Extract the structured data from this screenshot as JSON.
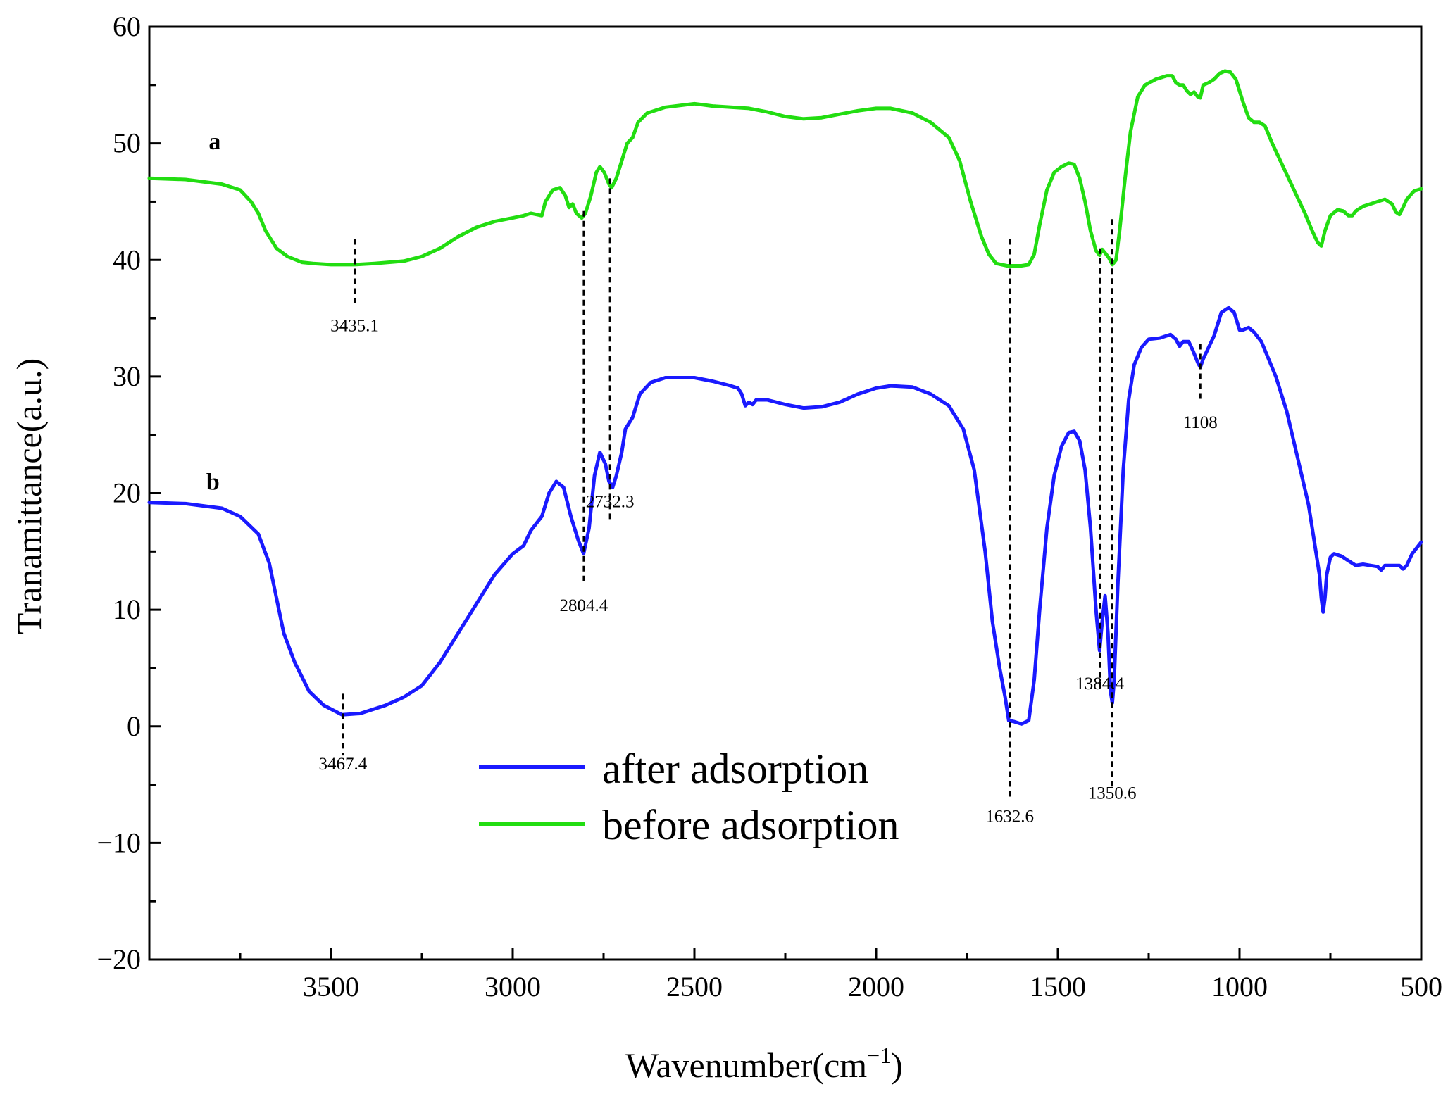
{
  "chart_data": {
    "type": "line",
    "title": "",
    "xlabel": "Wavenumber(cm",
    "xlabel_sup": "−1",
    "xlabel_close": ")",
    "ylabel": "Tranamittance(a.u.)",
    "xlim": [
      4000,
      500
    ],
    "ylim": [
      -20,
      60
    ],
    "x_ticks": [
      3500,
      3000,
      2500,
      2000,
      1500,
      1000,
      500
    ],
    "x_tick_labels": [
      "3500",
      "3000",
      "2500",
      "2000",
      "1500",
      "1000",
      "500"
    ],
    "y_ticks": [
      -20,
      -10,
      0,
      10,
      20,
      30,
      40,
      50,
      60
    ],
    "y_tick_labels": [
      "−20",
      "−10",
      "0",
      "10",
      "20",
      "30",
      "40",
      "50",
      "60"
    ],
    "grid": false,
    "legend": {
      "position": "bottom-center",
      "entries": [
        "after adsorption",
        "before adsorption"
      ]
    },
    "series": [
      {
        "name": "after adsorption",
        "label": "b",
        "color": "#1a1aff",
        "points": [
          [
            4000,
            19.2
          ],
          [
            3900,
            19.1
          ],
          [
            3800,
            18.7
          ],
          [
            3750,
            18.0
          ],
          [
            3700,
            16.5
          ],
          [
            3670,
            14
          ],
          [
            3650,
            11
          ],
          [
            3630,
            8
          ],
          [
            3600,
            5.5
          ],
          [
            3560,
            3
          ],
          [
            3520,
            1.8
          ],
          [
            3470,
            1.0
          ],
          [
            3420,
            1.1
          ],
          [
            3350,
            1.8
          ],
          [
            3300,
            2.5
          ],
          [
            3250,
            3.5
          ],
          [
            3200,
            5.5
          ],
          [
            3150,
            8
          ],
          [
            3100,
            10.5
          ],
          [
            3050,
            13
          ],
          [
            3000,
            14.8
          ],
          [
            2970,
            15.5
          ],
          [
            2950,
            16.8
          ],
          [
            2920,
            18
          ],
          [
            2900,
            20
          ],
          [
            2880,
            21
          ],
          [
            2860,
            20.5
          ],
          [
            2840,
            18
          ],
          [
            2820,
            16
          ],
          [
            2805,
            14.8
          ],
          [
            2790,
            17
          ],
          [
            2775,
            21.5
          ],
          [
            2760,
            23.5
          ],
          [
            2745,
            22.5
          ],
          [
            2735,
            21
          ],
          [
            2725,
            20.5
          ],
          [
            2715,
            21.5
          ],
          [
            2700,
            23.5
          ],
          [
            2690,
            25.5
          ],
          [
            2670,
            26.5
          ],
          [
            2650,
            28.5
          ],
          [
            2620,
            29.5
          ],
          [
            2580,
            29.9
          ],
          [
            2500,
            29.9
          ],
          [
            2450,
            29.6
          ],
          [
            2400,
            29.2
          ],
          [
            2380,
            29.0
          ],
          [
            2370,
            28.5
          ],
          [
            2360,
            27.5
          ],
          [
            2350,
            27.8
          ],
          [
            2340,
            27.6
          ],
          [
            2330,
            28
          ],
          [
            2300,
            28.0
          ],
          [
            2250,
            27.6
          ],
          [
            2200,
            27.3
          ],
          [
            2150,
            27.4
          ],
          [
            2100,
            27.8
          ],
          [
            2050,
            28.5
          ],
          [
            2000,
            29.0
          ],
          [
            1960,
            29.2
          ],
          [
            1900,
            29.1
          ],
          [
            1850,
            28.5
          ],
          [
            1800,
            27.5
          ],
          [
            1760,
            25.5
          ],
          [
            1730,
            22
          ],
          [
            1700,
            15
          ],
          [
            1680,
            9
          ],
          [
            1660,
            5
          ],
          [
            1645,
            2.5
          ],
          [
            1635,
            0.5
          ],
          [
            1620,
            0.4
          ],
          [
            1600,
            0.2
          ],
          [
            1580,
            0.5
          ],
          [
            1565,
            4
          ],
          [
            1550,
            10
          ],
          [
            1530,
            17
          ],
          [
            1510,
            21.5
          ],
          [
            1490,
            24
          ],
          [
            1470,
            25.2
          ],
          [
            1455,
            25.3
          ],
          [
            1440,
            24.5
          ],
          [
            1425,
            22
          ],
          [
            1410,
            17
          ],
          [
            1395,
            10
          ],
          [
            1385,
            6.5
          ],
          [
            1378,
            9
          ],
          [
            1370,
            11.2
          ],
          [
            1362,
            8
          ],
          [
            1355,
            3
          ],
          [
            1350,
            2
          ],
          [
            1345,
            4
          ],
          [
            1335,
            12
          ],
          [
            1320,
            22
          ],
          [
            1305,
            28
          ],
          [
            1290,
            31
          ],
          [
            1270,
            32.5
          ],
          [
            1250,
            33.2
          ],
          [
            1220,
            33.3
          ],
          [
            1190,
            33.6
          ],
          [
            1175,
            33.2
          ],
          [
            1165,
            32.6
          ],
          [
            1155,
            33
          ],
          [
            1140,
            33
          ],
          [
            1128,
            32.2
          ],
          [
            1115,
            31.2
          ],
          [
            1108,
            30.8
          ],
          [
            1100,
            31.5
          ],
          [
            1085,
            32.5
          ],
          [
            1070,
            33.5
          ],
          [
            1050,
            35.5
          ],
          [
            1030,
            35.9
          ],
          [
            1015,
            35.5
          ],
          [
            1000,
            34
          ],
          [
            990,
            34
          ],
          [
            975,
            34.2
          ],
          [
            960,
            33.8
          ],
          [
            940,
            33
          ],
          [
            900,
            30
          ],
          [
            870,
            27
          ],
          [
            840,
            23
          ],
          [
            810,
            19
          ],
          [
            790,
            15
          ],
          [
            780,
            13
          ],
          [
            775,
            11
          ],
          [
            770,
            9.8
          ],
          [
            765,
            11
          ],
          [
            760,
            13
          ],
          [
            750,
            14.5
          ],
          [
            740,
            14.8
          ],
          [
            720,
            14.6
          ],
          [
            700,
            14.2
          ],
          [
            680,
            13.8
          ],
          [
            660,
            13.9
          ],
          [
            640,
            13.8
          ],
          [
            620,
            13.7
          ],
          [
            610,
            13.4
          ],
          [
            600,
            13.8
          ],
          [
            580,
            13.8
          ],
          [
            560,
            13.8
          ],
          [
            550,
            13.5
          ],
          [
            540,
            13.8
          ],
          [
            525,
            14.8
          ],
          [
            500,
            15.8
          ]
        ]
      },
      {
        "name": "before adsorption",
        "label": "a",
        "color": "#22dd11",
        "points": [
          [
            4000,
            47.0
          ],
          [
            3900,
            46.9
          ],
          [
            3800,
            46.5
          ],
          [
            3750,
            46
          ],
          [
            3720,
            45
          ],
          [
            3700,
            44
          ],
          [
            3680,
            42.5
          ],
          [
            3650,
            41
          ],
          [
            3620,
            40.3
          ],
          [
            3580,
            39.8
          ],
          [
            3550,
            39.7
          ],
          [
            3500,
            39.6
          ],
          [
            3435,
            39.6
          ],
          [
            3380,
            39.7
          ],
          [
            3300,
            39.9
          ],
          [
            3250,
            40.3
          ],
          [
            3200,
            41
          ],
          [
            3150,
            42
          ],
          [
            3100,
            42.8
          ],
          [
            3050,
            43.3
          ],
          [
            3000,
            43.6
          ],
          [
            2970,
            43.8
          ],
          [
            2950,
            44
          ],
          [
            2920,
            43.8
          ],
          [
            2910,
            45
          ],
          [
            2890,
            46
          ],
          [
            2870,
            46.2
          ],
          [
            2855,
            45.5
          ],
          [
            2845,
            44.5
          ],
          [
            2835,
            44.8
          ],
          [
            2825,
            44
          ],
          [
            2810,
            43.6
          ],
          [
            2800,
            44
          ],
          [
            2785,
            45.5
          ],
          [
            2770,
            47.5
          ],
          [
            2760,
            48
          ],
          [
            2748,
            47.5
          ],
          [
            2735,
            46.5
          ],
          [
            2728,
            46.2
          ],
          [
            2715,
            47
          ],
          [
            2700,
            48.5
          ],
          [
            2685,
            50
          ],
          [
            2670,
            50.5
          ],
          [
            2655,
            51.8
          ],
          [
            2630,
            52.6
          ],
          [
            2580,
            53.1
          ],
          [
            2500,
            53.4
          ],
          [
            2450,
            53.2
          ],
          [
            2400,
            53.1
          ],
          [
            2350,
            53
          ],
          [
            2300,
            52.7
          ],
          [
            2250,
            52.3
          ],
          [
            2200,
            52.1
          ],
          [
            2150,
            52.2
          ],
          [
            2100,
            52.5
          ],
          [
            2050,
            52.8
          ],
          [
            2000,
            53
          ],
          [
            1960,
            53
          ],
          [
            1900,
            52.6
          ],
          [
            1850,
            51.8
          ],
          [
            1800,
            50.5
          ],
          [
            1770,
            48.5
          ],
          [
            1740,
            45
          ],
          [
            1710,
            42
          ],
          [
            1690,
            40.5
          ],
          [
            1670,
            39.7
          ],
          [
            1640,
            39.5
          ],
          [
            1600,
            39.5
          ],
          [
            1580,
            39.6
          ],
          [
            1565,
            40.5
          ],
          [
            1550,
            43
          ],
          [
            1530,
            46
          ],
          [
            1510,
            47.5
          ],
          [
            1490,
            48
          ],
          [
            1470,
            48.3
          ],
          [
            1455,
            48.2
          ],
          [
            1440,
            47
          ],
          [
            1425,
            45
          ],
          [
            1410,
            42.5
          ],
          [
            1395,
            40.8
          ],
          [
            1385,
            40.4
          ],
          [
            1378,
            40.9
          ],
          [
            1370,
            40.6
          ],
          [
            1360,
            40.2
          ],
          [
            1350,
            39.6
          ],
          [
            1340,
            40
          ],
          [
            1330,
            42.5
          ],
          [
            1315,
            47
          ],
          [
            1300,
            51
          ],
          [
            1280,
            54
          ],
          [
            1260,
            55
          ],
          [
            1230,
            55.5
          ],
          [
            1200,
            55.8
          ],
          [
            1185,
            55.8
          ],
          [
            1175,
            55.2
          ],
          [
            1165,
            55
          ],
          [
            1155,
            55
          ],
          [
            1145,
            54.5
          ],
          [
            1135,
            54.2
          ],
          [
            1125,
            54.4
          ],
          [
            1115,
            54
          ],
          [
            1108,
            53.9
          ],
          [
            1100,
            55
          ],
          [
            1085,
            55.2
          ],
          [
            1070,
            55.5
          ],
          [
            1055,
            56
          ],
          [
            1040,
            56.2
          ],
          [
            1025,
            56.1
          ],
          [
            1010,
            55.5
          ],
          [
            1000,
            54.5
          ],
          [
            990,
            53.5
          ],
          [
            975,
            52.2
          ],
          [
            960,
            51.8
          ],
          [
            945,
            51.8
          ],
          [
            930,
            51.5
          ],
          [
            910,
            50
          ],
          [
            880,
            48
          ],
          [
            850,
            46
          ],
          [
            820,
            44
          ],
          [
            800,
            42.5
          ],
          [
            785,
            41.5
          ],
          [
            775,
            41.2
          ],
          [
            765,
            42.5
          ],
          [
            750,
            43.8
          ],
          [
            730,
            44.3
          ],
          [
            715,
            44.2
          ],
          [
            700,
            43.8
          ],
          [
            690,
            43.8
          ],
          [
            680,
            44.2
          ],
          [
            660,
            44.6
          ],
          [
            640,
            44.8
          ],
          [
            620,
            45
          ],
          [
            600,
            45.2
          ],
          [
            580,
            44.8
          ],
          [
            570,
            44.1
          ],
          [
            560,
            43.9
          ],
          [
            550,
            44.5
          ],
          [
            540,
            45.2
          ],
          [
            520,
            45.9
          ],
          [
            500,
            46.1
          ]
        ]
      }
    ],
    "annotations": [
      {
        "text": "3435.1",
        "x": 3435.1,
        "line_from": 41.8,
        "line_to": 36.3,
        "label_y": 33.9
      },
      {
        "text": "2804.4",
        "x": 2804.4,
        "line_from": 44.2,
        "line_to": 12.4,
        "label_y": 9.9
      },
      {
        "text": "2732.3",
        "x": 2732.3,
        "line_from": 47.0,
        "line_to": 17.6,
        "label_y": 18.8
      },
      {
        "text": "3467.4",
        "x": 3467.4,
        "line_from": 2.8,
        "line_to": -2.5,
        "label_y": -3.7
      },
      {
        "text": "1632.6",
        "x": 1632.6,
        "line_from": 41.8,
        "line_to": -6.3,
        "label_y": -8.2
      },
      {
        "text": "1384.4",
        "x": 1384.4,
        "line_from": 41.0,
        "line_to": 3.0,
        "label_y": 3.2
      },
      {
        "text": "1350.6",
        "x": 1350.6,
        "line_from": 43.5,
        "line_to": -5.3,
        "label_y": -6.2
      },
      {
        "text": "1108",
        "x": 1108,
        "line_from": 32.8,
        "line_to": 28.0,
        "label_y": 25.6
      }
    ],
    "curve_labels": [
      {
        "text": "a",
        "x": 3820,
        "y": 49.5
      },
      {
        "text": "b",
        "x": 3825,
        "y": 20.3
      }
    ]
  }
}
